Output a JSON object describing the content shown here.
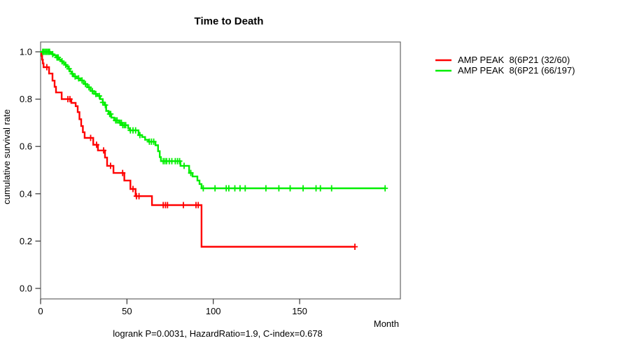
{
  "chart_data": {
    "type": "line",
    "subtype": "kaplan_meier_survival_step",
    "title": "Time to Death",
    "xlabel": "Month",
    "ylabel": "cumulative survival rate",
    "annotation": "logrank P=0.0031, HazardRatio=1.9, C-index=0.678",
    "xlim": [
      0,
      208
    ],
    "ylim": [
      0.0,
      1.0
    ],
    "grid": false,
    "legend_position": "outside-top-right",
    "x_ticks": [
      {
        "t": 0,
        "label": "0"
      },
      {
        "t": 50,
        "label": "50"
      },
      {
        "t": 100,
        "label": "100"
      },
      {
        "t": 150,
        "label": "150"
      }
    ],
    "y_ticks": [
      {
        "v": 0.0,
        "label": "0.0"
      },
      {
        "v": 0.2,
        "label": "0.2"
      },
      {
        "v": 0.4,
        "label": "0.4"
      },
      {
        "v": 0.6,
        "label": "0.6"
      },
      {
        "v": 0.8,
        "label": "0.8"
      },
      {
        "v": 1.0,
        "label": "1.0"
      }
    ],
    "series": [
      {
        "name": "AMP PEAK  8(6P21 (32/60)",
        "color": "#ff0000",
        "start": [
          0,
          1.0
        ],
        "end_time": 182,
        "steps": [
          [
            0.5,
            0.983
          ],
          [
            0.9,
            0.967
          ],
          [
            1.3,
            0.951
          ],
          [
            1.7,
            0.935
          ],
          [
            4.9,
            0.908
          ],
          [
            6.9,
            0.878
          ],
          [
            8.1,
            0.852
          ],
          [
            8.9,
            0.828
          ],
          [
            12.2,
            0.8
          ],
          [
            17.8,
            0.784
          ],
          [
            20.3,
            0.77
          ],
          [
            21.5,
            0.745
          ],
          [
            22.5,
            0.715
          ],
          [
            23.5,
            0.686
          ],
          [
            24.5,
            0.66
          ],
          [
            25.5,
            0.636
          ],
          [
            30.5,
            0.607
          ],
          [
            33.2,
            0.583
          ],
          [
            37.3,
            0.553
          ],
          [
            38.5,
            0.518
          ],
          [
            42.2,
            0.488
          ],
          [
            48.5,
            0.456
          ],
          [
            52.0,
            0.42
          ],
          [
            55.0,
            0.39
          ],
          [
            64.5,
            0.352
          ],
          [
            93.2,
            0.176
          ]
        ],
        "censor_times": [
          3.6,
          15.8,
          17.0,
          29.0,
          32.4,
          36.5,
          40.5,
          47.5,
          53.5,
          55.5,
          57.0,
          71.0,
          72.3,
          73.5,
          82.7,
          90.0,
          91.3,
          182
        ]
      },
      {
        "name": "AMP PEAK  8(6P21 (66/197)",
        "color": "#00ee00",
        "start": [
          0,
          1.0
        ],
        "end_time": 199.5,
        "steps": [
          [
            5.5,
            0.995
          ],
          [
            6.5,
            0.99
          ],
          [
            7.5,
            0.985
          ],
          [
            8.9,
            0.976
          ],
          [
            10.9,
            0.967
          ],
          [
            11.8,
            0.96
          ],
          [
            13.0,
            0.953
          ],
          [
            14.0,
            0.945
          ],
          [
            15.0,
            0.938
          ],
          [
            16.0,
            0.928
          ],
          [
            17.0,
            0.917
          ],
          [
            18.0,
            0.907
          ],
          [
            19.0,
            0.896
          ],
          [
            21.0,
            0.888
          ],
          [
            23.0,
            0.879
          ],
          [
            25.0,
            0.864
          ],
          [
            27.0,
            0.85
          ],
          [
            29.0,
            0.834
          ],
          [
            31.0,
            0.822
          ],
          [
            33.0,
            0.813
          ],
          [
            34.5,
            0.8
          ],
          [
            36.0,
            0.786
          ],
          [
            37.0,
            0.775
          ],
          [
            38.0,
            0.75
          ],
          [
            39.3,
            0.737
          ],
          [
            41.0,
            0.722
          ],
          [
            42.6,
            0.71
          ],
          [
            45.4,
            0.7
          ],
          [
            47.0,
            0.69
          ],
          [
            50.7,
            0.677
          ],
          [
            51.5,
            0.668
          ],
          [
            56.7,
            0.648
          ],
          [
            58.8,
            0.64
          ],
          [
            60.5,
            0.628
          ],
          [
            62.4,
            0.62
          ],
          [
            66.5,
            0.605
          ],
          [
            68.0,
            0.58
          ],
          [
            69.0,
            0.555
          ],
          [
            69.7,
            0.538
          ],
          [
            81.0,
            0.518
          ],
          [
            86.0,
            0.488
          ],
          [
            88.0,
            0.473
          ],
          [
            90.8,
            0.456
          ],
          [
            92.0,
            0.441
          ],
          [
            93.2,
            0.423
          ]
        ],
        "censor_times": [
          1.2,
          2.0,
          2.8,
          3.6,
          4.4,
          5.2,
          7.0,
          9.5,
          10.2,
          12.4,
          14.5,
          16.5,
          18.4,
          20.0,
          22.0,
          24.0,
          26.0,
          28.0,
          30.0,
          32.0,
          34.0,
          36.0,
          37.5,
          40.0,
          40.6,
          43.5,
          44.3,
          46.0,
          46.8,
          47.6,
          48.5,
          49.3,
          52.0,
          53.5,
          55.0,
          57.5,
          63.0,
          64.2,
          65.5,
          71.0,
          72.0,
          73.0,
          74.5,
          76.0,
          78.0,
          79.3,
          80.5,
          83.1,
          87.0,
          94.2,
          101.0,
          107.5,
          109.0,
          112.5,
          115.5,
          118.5,
          130.5,
          138.0,
          144.5,
          152.0,
          159.5,
          162.0,
          168.5,
          199.5
        ]
      }
    ]
  }
}
